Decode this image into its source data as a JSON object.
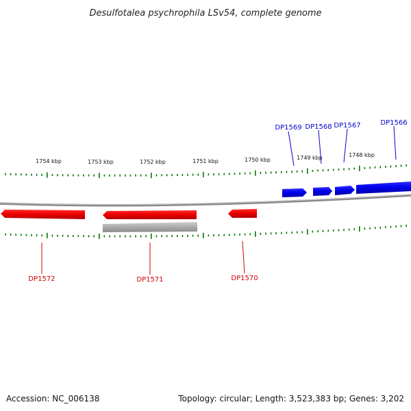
{
  "title": "Desulfotalea psychrophila LSv54, complete genome",
  "footer": {
    "accession": "Accession: NC_006138",
    "summary": "Topology: circular; Length: 3,523,383 bp; Genes: 3,202"
  },
  "colors": {
    "forward": "#0000ee",
    "reverse": "#ee0000",
    "feature": "#aaaaaa",
    "tick": "#007700",
    "backbone": "#888888"
  },
  "scale_labels": [
    "1754 kbp",
    "1753 kbp",
    "1752 kbp",
    "1751 kbp",
    "1750 kbp",
    "1749 kbp",
    "1748 kbp"
  ],
  "forward_genes": [
    "DP1569",
    "DP1568",
    "DP1567",
    "DP1566"
  ],
  "reverse_genes": [
    "DP1572",
    "DP1571",
    "DP1570"
  ]
}
